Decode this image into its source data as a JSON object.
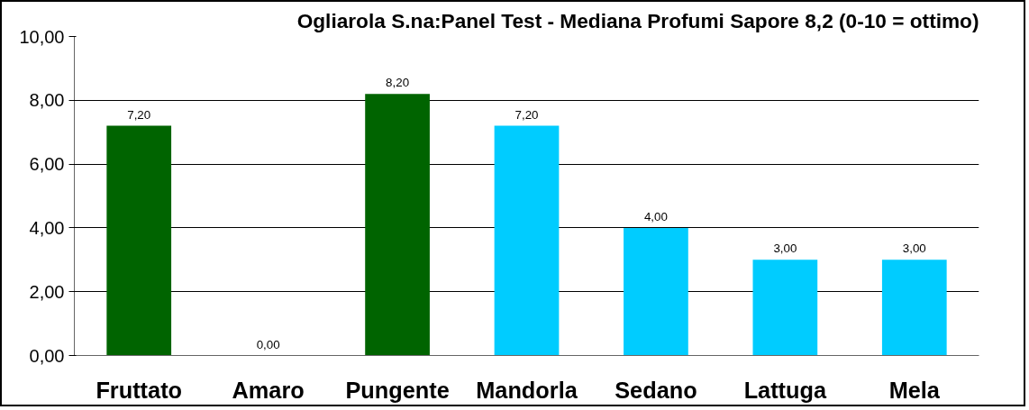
{
  "chart_data": {
    "type": "bar",
    "title": "Ogliarola S.na:Panel Test - Mediana Profumi Sapore 8,2 (0-10 = ottimo)",
    "categories": [
      "Fruttato",
      "Amaro",
      "Pungente",
      "Mandorla",
      "Sedano",
      "Lattuga",
      "Mela"
    ],
    "values": [
      7.2,
      0,
      8.2,
      7.2,
      4,
      3,
      3
    ],
    "colors": [
      "#006400",
      "#006400",
      "#006400",
      "#00ccff",
      "#00ccff",
      "#00ccff",
      "#00ccff"
    ],
    "value_labels": [
      "7,20",
      "0,00",
      "8,20",
      "7,20",
      "4,00",
      "3,00",
      "3,00"
    ],
    "ylim": [
      0,
      10
    ],
    "yticks": [
      {
        "value": 0,
        "label": "0,00"
      },
      {
        "value": 2,
        "label": "2,00"
      },
      {
        "value": 4,
        "label": "4,00"
      },
      {
        "value": 6,
        "label": "6,00"
      },
      {
        "value": 8,
        "label": "8,00"
      },
      {
        "value": 10,
        "label": "10,00"
      }
    ],
    "grid": "y"
  }
}
